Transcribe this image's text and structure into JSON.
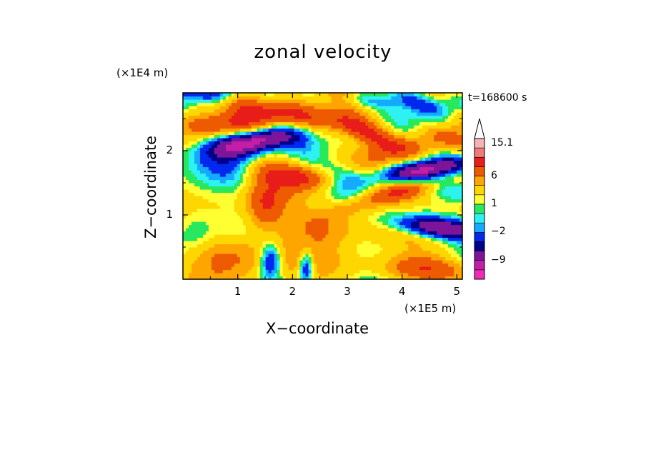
{
  "chart_data": {
    "type": "heatmap",
    "title": "zonal velocity",
    "xlabel": "X−coordinate",
    "ylabel": "Z−coordinate",
    "x_unit": "(×1E5 m)",
    "y_unit": "(×1E4 m)",
    "time_label": "t=168600 s",
    "xlim": [
      0,
      5.1
    ],
    "ylim": [
      0,
      2.9
    ],
    "x_ticks": [
      "1",
      "2",
      "3",
      "4",
      "5"
    ],
    "x_tick_values": [
      1,
      2,
      3,
      4,
      5
    ],
    "y_ticks": [
      "1",
      "2"
    ],
    "y_tick_values": [
      1,
      2
    ],
    "colorbar": {
      "levels": [
        -15,
        -12,
        -9,
        -6,
        -4,
        -2,
        -1,
        0,
        1,
        2,
        4,
        6,
        9,
        12,
        15.1
      ],
      "colors": [
        "#ef2bb7",
        "#c41ea8",
        "#7d1599",
        "#00008b",
        "#0028ee",
        "#14aaff",
        "#2ef2f2",
        "#27e85e",
        "#ffff32",
        "#ffd700",
        "#ffa500",
        "#ee5a00",
        "#e81c18",
        "#ee7a7a",
        "#f6b3b3"
      ],
      "labels": [
        "15.1",
        "6",
        "1",
        "−2",
        "−9"
      ],
      "label_values": [
        15.1,
        6,
        1,
        -2,
        -9
      ],
      "extend": "max"
    },
    "notable_features": [
      {
        "x": 1.3,
        "z": 2.1,
        "value": -12,
        "note": "strong westward jet band (dark blue)"
      },
      {
        "x": 2.3,
        "z": 2.6,
        "value": 8,
        "note": "eastward maximum (orange)"
      },
      {
        "x": 4.5,
        "z": 1.7,
        "value": -10,
        "note": "westward band (dark blue)"
      },
      {
        "x": 4.7,
        "z": 0.8,
        "value": -10,
        "note": "westward band (dark blue)"
      },
      {
        "x": 3.8,
        "z": 1.3,
        "value": 7,
        "note": "tilted eastward band (orange)"
      }
    ]
  }
}
